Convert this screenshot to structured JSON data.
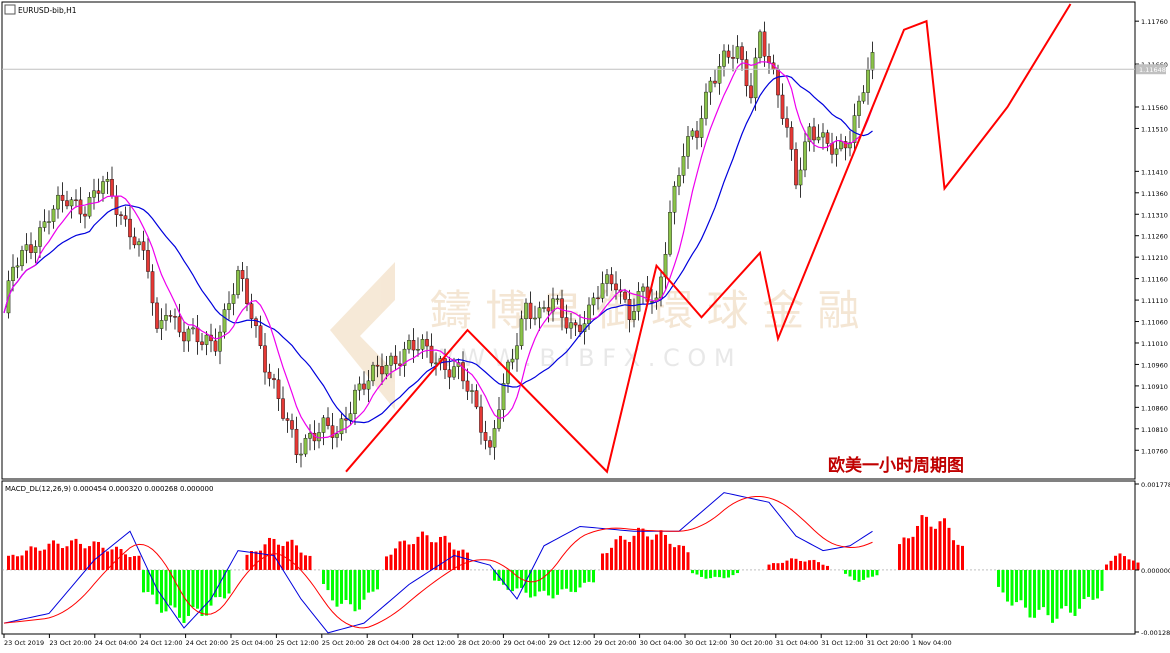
{
  "chart_data": [
    {
      "type": "candlestick",
      "symbol_label": "EURUSD-bib,H1",
      "current_price_label": "1.11648",
      "caption": "欧美一小时周期图",
      "watermark": {
        "cn": "鑄 博 皇 御 環 球 金 融",
        "en": "W W W . B I B F X . C O M"
      },
      "ylim": [
        1.107,
        1.118
      ],
      "price_ticks": [
        "1.11760",
        "1.11660",
        "1.11560",
        "1.11510",
        "1.11410",
        "1.11360",
        "1.11310",
        "1.11260",
        "1.11210",
        "1.11160",
        "1.11110",
        "1.11060",
        "1.11010",
        "1.10960",
        "1.10910",
        "1.10860",
        "1.10810",
        "1.10760"
      ],
      "time_labels": [
        "23 Oct 2019",
        "23 Oct 20:00",
        "24 Oct 04:00",
        "24 Oct 12:00",
        "24 Oct 20:00",
        "25 Oct 04:00",
        "25 Oct 12:00",
        "25 Oct 20:00",
        "28 Oct 04:00",
        "28 Oct 12:00",
        "28 Oct 20:00",
        "29 Oct 04:00",
        "29 Oct 12:00",
        "29 Oct 20:00",
        "30 Oct 04:00",
        "30 Oct 12:00",
        "30 Oct 20:00",
        "31 Oct 04:00",
        "31 Oct 12:00",
        "31 Oct 20:00",
        "1 Nov 04:00"
      ],
      "close_anchors": [
        [
          0,
          1.1108
        ],
        [
          2,
          1.1118
        ],
        [
          6,
          1.1124
        ],
        [
          10,
          1.1131
        ],
        [
          14,
          1.1134
        ],
        [
          18,
          1.1133
        ],
        [
          22,
          1.1138
        ],
        [
          26,
          1.1131
        ],
        [
          29,
          1.1126
        ],
        [
          32,
          1.1118
        ],
        [
          34,
          1.1102
        ],
        [
          36,
          1.111
        ],
        [
          40,
          1.1103
        ],
        [
          44,
          1.1101
        ],
        [
          47,
          1.1102
        ],
        [
          52,
          1.1116
        ],
        [
          55,
          1.1108
        ],
        [
          58,
          1.1097
        ],
        [
          62,
          1.1084
        ],
        [
          65,
          1.1076
        ],
        [
          68,
          1.108
        ],
        [
          71,
          1.1081
        ],
        [
          74,
          1.1079
        ],
        [
          78,
          1.109
        ],
        [
          82,
          1.1093
        ],
        [
          86,
          1.1097
        ],
        [
          90,
          1.11
        ],
        [
          94,
          1.1099
        ],
        [
          98,
          1.1096
        ],
        [
          101,
          1.1094
        ],
        [
          104,
          1.1088
        ],
        [
          107,
          1.108
        ],
        [
          108,
          1.1076
        ],
        [
          110,
          1.1087
        ],
        [
          113,
          1.1097
        ],
        [
          116,
          1.111
        ],
        [
          119,
          1.1108
        ],
        [
          122,
          1.111
        ],
        [
          124,
          1.1107
        ],
        [
          127,
          1.1105
        ],
        [
          130,
          1.1108
        ],
        [
          133,
          1.1114
        ],
        [
          136,
          1.1116
        ],
        [
          139,
          1.1108
        ],
        [
          142,
          1.1112
        ],
        [
          145,
          1.111
        ],
        [
          148,
          1.1132
        ],
        [
          151,
          1.1145
        ],
        [
          154,
          1.115
        ],
        [
          157,
          1.1163
        ],
        [
          160,
          1.1167
        ],
        [
          163,
          1.1168
        ],
        [
          166,
          1.116
        ],
        [
          168,
          1.1174
        ],
        [
          171,
          1.1162
        ],
        [
          174,
          1.115
        ],
        [
          176,
          1.114
        ],
        [
          179,
          1.1151
        ],
        [
          182,
          1.1147
        ],
        [
          185,
          1.1146
        ],
        [
          188,
          1.115
        ],
        [
          190,
          1.1156
        ],
        [
          192,
          1.1164
        ],
        [
          193,
          1.1166
        ]
      ],
      "series": [
        {
          "name": "",
          "color": "#0000dd"
        },
        {
          "name": "",
          "color": "#ee00ee"
        }
      ],
      "zigzag": {
        "color": "#ff0000",
        "points": [
          [
            76,
            1.1071
          ],
          [
            103,
            1.1104
          ],
          [
            134,
            1.1071
          ],
          [
            145,
            1.1119
          ],
          [
            155,
            1.1107
          ],
          [
            168,
            1.1122
          ],
          [
            172,
            1.1102
          ],
          [
            200,
            1.1174
          ],
          [
            205,
            1.1176
          ],
          [
            209,
            1.1137
          ],
          [
            223,
            1.1156
          ],
          [
            237,
            1.118
          ]
        ]
      },
      "price_line_value": 1.11648,
      "price_line_color": "#c0c0c0"
    },
    {
      "type": "macd",
      "title_label": "MACD_DL(12,26,9) 0.000454 0.000320 0.000268 0.000000",
      "ylim": [
        -0.001283,
        0.001778
      ],
      "ticks": [
        "0.001778",
        "0.000000",
        "-0.001283"
      ],
      "zero_value": 0.0,
      "anchors": [
        [
          0,
          -0.0011
        ],
        [
          10,
          -0.0009
        ],
        [
          20,
          0.0002
        ],
        [
          28,
          0.0008
        ],
        [
          34,
          -0.0004
        ],
        [
          40,
          -0.0012
        ],
        [
          46,
          -0.0006
        ],
        [
          52,
          0.0004
        ],
        [
          60,
          0.0003
        ],
        [
          66,
          -0.0006
        ],
        [
          72,
          -0.0013
        ],
        [
          80,
          -0.0011
        ],
        [
          90,
          -0.0003
        ],
        [
          100,
          0.0003
        ],
        [
          108,
          0.0001
        ],
        [
          114,
          -0.0006
        ],
        [
          120,
          0.0005
        ],
        [
          128,
          0.0009
        ],
        [
          140,
          0.0008
        ],
        [
          150,
          0.0008
        ],
        [
          160,
          0.0016
        ],
        [
          170,
          0.0014
        ],
        [
          176,
          0.0007
        ],
        [
          182,
          0.0004
        ],
        [
          188,
          0.0005
        ],
        [
          193,
          0.0008
        ]
      ],
      "histogram": [
        {
          "from": 1,
          "to": 30,
          "peak": 0.00065,
          "color": "#ff0000"
        },
        {
          "from": 31,
          "to": 50,
          "peak": -0.0011,
          "color": "#00ff00"
        },
        {
          "from": 54,
          "to": 68,
          "peak": 0.0007,
          "color": "#ff0000"
        },
        {
          "from": 71,
          "to": 83,
          "peak": -0.0009,
          "color": "#00ff00"
        },
        {
          "from": 85,
          "to": 103,
          "peak": 0.0008,
          "color": "#ff0000"
        },
        {
          "from": 109,
          "to": 131,
          "peak": -0.0006,
          "color": "#00ff00"
        },
        {
          "from": 133,
          "to": 152,
          "peak": 0.0009,
          "color": "#ff0000"
        },
        {
          "from": 153,
          "to": 163,
          "peak": -0.0002,
          "color": "#00ff00"
        },
        {
          "from": 170,
          "to": 183,
          "peak": 0.00025,
          "color": "#ff0000"
        },
        {
          "from": 187,
          "to": 194,
          "peak": -0.00025,
          "color": "#00ff00"
        },
        {
          "from": 199,
          "to": 213,
          "peak": 0.0012,
          "color": "#ff0000"
        },
        {
          "from": 221,
          "to": 244,
          "peak": -0.0011,
          "color": "#00ff00"
        },
        {
          "from": 245,
          "to": 252,
          "peak": 0.00035,
          "color": "#ff0000"
        }
      ],
      "series": [
        {
          "name": "",
          "color": "#0000dd"
        },
        {
          "name": "",
          "color": "#ff0000"
        }
      ]
    }
  ],
  "colors": {
    "bull": "#8bc34a",
    "bear": "#e53935",
    "axis": "#000000",
    "grid_text": "#000000"
  }
}
